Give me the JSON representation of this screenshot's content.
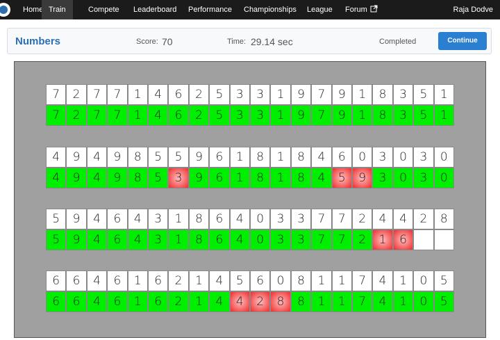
{
  "nav": {
    "items": [
      "Home",
      "Train",
      "Compete",
      "Leaderboard",
      "Performance",
      "Championships",
      "League",
      "Forum"
    ],
    "active": 1,
    "user": "Raja Dodve"
  },
  "header": {
    "title": "Numbers",
    "score_label": "Score:",
    "score": "70",
    "time_label": "Time:",
    "time": "29.14 sec",
    "status": "Completed",
    "button": "Continue"
  },
  "groups": [
    {
      "target": [
        "7",
        "2",
        "7",
        "7",
        "1",
        "4",
        "6",
        "2",
        "5",
        "3",
        "3",
        "1",
        "9",
        "7",
        "9",
        "1",
        "8",
        "3",
        "5",
        "1"
      ],
      "recall": [
        "7",
        "2",
        "7",
        "7",
        "1",
        "4",
        "6",
        "2",
        "5",
        "3",
        "3",
        "1",
        "9",
        "7",
        "9",
        "1",
        "8",
        "3",
        "5",
        "1"
      ]
    },
    {
      "target": [
        "4",
        "9",
        "4",
        "9",
        "8",
        "5",
        "5",
        "9",
        "6",
        "1",
        "8",
        "1",
        "8",
        "4",
        "6",
        "0",
        "3",
        "0",
        "3",
        "0"
      ],
      "recall": [
        "4",
        "9",
        "4",
        "9",
        "8",
        "5",
        "3",
        "9",
        "6",
        "1",
        "8",
        "1",
        "8",
        "4",
        "5",
        "9",
        "3",
        "0",
        "3",
        "0"
      ]
    },
    {
      "target": [
        "5",
        "9",
        "4",
        "6",
        "4",
        "3",
        "1",
        "8",
        "6",
        "4",
        "0",
        "3",
        "3",
        "7",
        "7",
        "2",
        "4",
        "4",
        "2",
        "8"
      ],
      "recall": [
        "5",
        "9",
        "4",
        "6",
        "4",
        "3",
        "1",
        "8",
        "6",
        "4",
        "0",
        "3",
        "3",
        "7",
        "7",
        "2",
        "1",
        "6",
        null,
        null
      ]
    },
    {
      "target": [
        "6",
        "6",
        "4",
        "6",
        "1",
        "6",
        "2",
        "1",
        "4",
        "5",
        "6",
        "0",
        "8",
        "1",
        "1",
        "7",
        "4",
        "1",
        "0",
        "5"
      ],
      "recall": [
        "6",
        "6",
        "4",
        "6",
        "1",
        "6",
        "2",
        "1",
        "4",
        "4",
        "2",
        "8",
        "8",
        "1",
        "1",
        "7",
        "4",
        "1",
        "0",
        "5"
      ]
    }
  ]
}
